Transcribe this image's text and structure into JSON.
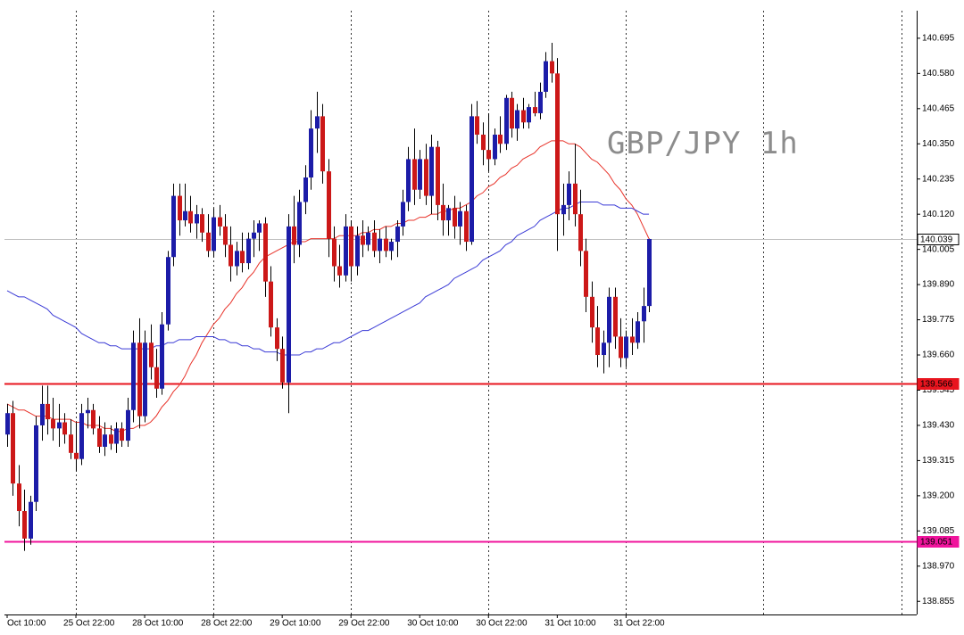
{
  "chart_data": {
    "type": "candlestick",
    "annotation": "GBP/JPY 1h",
    "categories": [
      "Oct 10:00",
      null,
      null,
      null,
      null,
      null,
      null,
      null,
      null,
      null,
      null,
      null,
      "25 Oct 22:00",
      null,
      null,
      null,
      null,
      null,
      null,
      null,
      null,
      null,
      null,
      null,
      "28 Oct 10:00",
      null,
      null,
      null,
      null,
      null,
      null,
      null,
      null,
      null,
      null,
      null,
      "28 Oct 22:00",
      null,
      null,
      null,
      null,
      null,
      null,
      null,
      null,
      null,
      null,
      null,
      "29 Oct 10:00",
      null,
      null,
      null,
      null,
      null,
      null,
      null,
      null,
      null,
      null,
      null,
      "29 Oct 22:00",
      null,
      null,
      null,
      null,
      null,
      null,
      null,
      null,
      null,
      null,
      null,
      "30 Oct 10:00",
      null,
      null,
      null,
      null,
      null,
      null,
      null,
      null,
      null,
      null,
      null,
      "30 Oct 22:00",
      null,
      null,
      null,
      null,
      null,
      null,
      null,
      null,
      null,
      null,
      null,
      "31 Oct 10:00",
      null,
      null,
      null,
      null,
      null,
      null,
      null,
      null,
      null,
      null,
      null,
      "31 Oct 22:00",
      null,
      null,
      null,
      null
    ],
    "ohlc": [
      [
        139.4,
        139.5,
        139.36,
        139.47
      ],
      [
        139.47,
        139.51,
        139.2,
        139.24
      ],
      [
        139.24,
        139.3,
        139.1,
        139.15
      ],
      [
        139.15,
        139.22,
        139.02,
        139.06
      ],
      [
        139.06,
        139.2,
        139.04,
        139.18
      ],
      [
        139.18,
        139.46,
        139.15,
        139.43
      ],
      [
        139.43,
        139.56,
        139.38,
        139.5
      ],
      [
        139.5,
        139.56,
        139.4,
        139.45
      ],
      [
        139.45,
        139.52,
        139.38,
        139.42
      ],
      [
        139.42,
        139.5,
        139.36,
        139.44
      ],
      [
        139.44,
        139.47,
        139.37,
        139.4
      ],
      [
        139.4,
        139.45,
        139.32,
        139.34
      ],
      [
        139.34,
        139.44,
        139.28,
        139.32
      ],
      [
        139.32,
        139.5,
        139.3,
        139.47
      ],
      [
        139.47,
        139.52,
        139.42,
        139.48
      ],
      [
        139.48,
        139.5,
        139.4,
        139.42
      ],
      [
        139.42,
        139.46,
        139.34,
        139.36
      ],
      [
        139.36,
        139.44,
        139.33,
        139.4
      ],
      [
        139.4,
        139.43,
        139.35,
        139.37
      ],
      [
        139.37,
        139.44,
        139.34,
        139.42
      ],
      [
        139.42,
        139.44,
        139.36,
        139.38
      ],
      [
        139.38,
        139.52,
        139.36,
        139.48
      ],
      [
        139.48,
        139.74,
        139.44,
        139.7
      ],
      [
        139.7,
        139.78,
        139.42,
        139.46
      ],
      [
        139.46,
        139.74,
        139.44,
        139.7
      ],
      [
        139.7,
        139.76,
        139.58,
        139.62
      ],
      [
        139.62,
        139.68,
        139.52,
        139.55
      ],
      [
        139.55,
        139.8,
        139.53,
        139.76
      ],
      [
        139.76,
        140.0,
        139.74,
        139.98
      ],
      [
        139.98,
        140.22,
        139.95,
        140.18
      ],
      [
        140.18,
        140.22,
        140.05,
        140.1
      ],
      [
        140.1,
        140.22,
        140.08,
        140.13
      ],
      [
        140.13,
        140.18,
        140.06,
        140.09
      ],
      [
        140.09,
        140.15,
        140.04,
        140.12
      ],
      [
        140.12,
        140.14,
        140.03,
        140.06
      ],
      [
        140.06,
        140.12,
        139.98,
        140.0
      ],
      [
        140.0,
        140.14,
        139.98,
        140.11
      ],
      [
        140.11,
        140.15,
        140.05,
        140.08
      ],
      [
        140.08,
        140.12,
        139.98,
        140.02
      ],
      [
        140.02,
        140.08,
        139.9,
        139.95
      ],
      [
        139.95,
        140.03,
        139.92,
        140.0
      ],
      [
        140.0,
        140.06,
        139.93,
        139.96
      ],
      [
        139.96,
        140.06,
        139.94,
        140.04
      ],
      [
        140.04,
        140.1,
        139.98,
        140.06
      ],
      [
        140.06,
        140.1,
        140.0,
        140.09
      ],
      [
        140.09,
        140.11,
        139.85,
        139.9
      ],
      [
        139.9,
        139.95,
        139.72,
        139.75
      ],
      [
        139.75,
        139.78,
        139.64,
        139.68
      ],
      [
        139.68,
        139.72,
        139.55,
        139.57
      ],
      [
        139.57,
        140.12,
        139.47,
        140.08
      ],
      [
        140.08,
        140.18,
        139.96,
        140.02
      ],
      [
        140.02,
        140.2,
        139.98,
        140.16
      ],
      [
        140.16,
        140.28,
        140.12,
        140.24
      ],
      [
        140.24,
        140.46,
        140.2,
        140.4
      ],
      [
        140.4,
        140.52,
        140.32,
        140.44
      ],
      [
        140.44,
        140.48,
        140.22,
        140.26
      ],
      [
        140.26,
        140.3,
        139.98,
        140.04
      ],
      [
        140.04,
        140.08,
        139.9,
        139.95
      ],
      [
        139.95,
        140.02,
        139.88,
        139.92
      ],
      [
        139.92,
        140.12,
        139.9,
        140.08
      ],
      [
        140.08,
        140.1,
        139.9,
        139.95
      ],
      [
        139.95,
        140.08,
        139.92,
        140.05
      ],
      [
        140.05,
        140.1,
        139.98,
        140.02
      ],
      [
        140.02,
        140.08,
        140.0,
        140.06
      ],
      [
        140.06,
        140.1,
        139.98,
        140.0
      ],
      [
        140.0,
        140.07,
        139.96,
        140.04
      ],
      [
        140.04,
        140.08,
        139.98,
        140.0
      ],
      [
        140.0,
        140.04,
        139.97,
        140.03
      ],
      [
        140.03,
        140.1,
        139.98,
        140.08
      ],
      [
        140.08,
        140.2,
        140.05,
        140.16
      ],
      [
        140.16,
        140.34,
        140.13,
        140.3
      ],
      [
        140.3,
        140.4,
        140.15,
        140.2
      ],
      [
        140.2,
        140.33,
        140.17,
        140.3
      ],
      [
        140.3,
        140.35,
        140.15,
        140.18
      ],
      [
        140.18,
        140.38,
        140.12,
        140.34
      ],
      [
        140.34,
        140.36,
        140.1,
        140.15
      ],
      [
        140.15,
        140.22,
        140.05,
        140.1
      ],
      [
        140.1,
        140.15,
        140.05,
        140.14
      ],
      [
        140.14,
        140.18,
        140.04,
        140.08
      ],
      [
        140.08,
        140.16,
        140.02,
        140.13
      ],
      [
        140.13,
        140.15,
        140.0,
        140.03
      ],
      [
        140.03,
        140.48,
        140.02,
        140.44
      ],
      [
        140.44,
        140.49,
        140.35,
        140.38
      ],
      [
        140.38,
        140.42,
        140.28,
        140.33
      ],
      [
        140.33,
        140.45,
        140.26,
        140.3
      ],
      [
        140.3,
        140.4,
        140.28,
        140.38
      ],
      [
        140.38,
        140.44,
        140.32,
        140.35
      ],
      [
        140.35,
        140.51,
        140.33,
        140.5
      ],
      [
        140.5,
        140.52,
        140.37,
        140.4
      ],
      [
        140.4,
        140.48,
        140.36,
        140.46
      ],
      [
        140.46,
        140.5,
        140.4,
        140.42
      ],
      [
        140.42,
        140.48,
        140.4,
        140.47
      ],
      [
        140.47,
        140.52,
        140.44,
        140.45
      ],
      [
        140.45,
        140.55,
        140.43,
        140.52
      ],
      [
        140.52,
        140.65,
        140.5,
        140.62
      ],
      [
        140.62,
        140.68,
        140.55,
        140.58
      ],
      [
        140.58,
        140.63,
        140.0,
        140.12
      ],
      [
        140.12,
        140.22,
        140.05,
        140.15
      ],
      [
        140.15,
        140.26,
        140.1,
        140.22
      ],
      [
        140.22,
        140.35,
        140.08,
        140.12
      ],
      [
        140.12,
        140.2,
        139.95,
        140.0
      ],
      [
        140.0,
        140.04,
        139.8,
        139.85
      ],
      [
        139.85,
        139.9,
        139.7,
        139.75
      ],
      [
        139.75,
        139.82,
        139.62,
        139.66
      ],
      [
        139.66,
        139.74,
        139.6,
        139.7
      ],
      [
        139.7,
        139.88,
        139.62,
        139.85
      ],
      [
        139.85,
        139.88,
        139.68,
        139.72
      ],
      [
        139.72,
        139.78,
        139.62,
        139.65
      ],
      [
        139.65,
        139.74,
        139.62,
        139.72
      ],
      [
        139.72,
        139.78,
        139.66,
        139.7
      ],
      [
        139.7,
        139.8,
        139.68,
        139.77
      ],
      [
        139.77,
        139.88,
        139.7,
        139.82
      ],
      [
        139.82,
        140.04,
        139.8,
        140.039
      ]
    ],
    "bull_color": "#1c1ca8",
    "bear_color": "#cc1818",
    "wick_color": "#000000",
    "series": [
      {
        "color": "#e8332a",
        "values": [
          139.5,
          139.49,
          139.48,
          139.48,
          139.47,
          139.46,
          139.46,
          139.46,
          139.45,
          139.45,
          139.45,
          139.45,
          139.44,
          139.44,
          139.43,
          139.43,
          139.43,
          139.42,
          139.42,
          139.41,
          139.41,
          139.42,
          139.42,
          139.43,
          139.43,
          139.44,
          139.46,
          139.49,
          139.51,
          139.54,
          139.56,
          139.59,
          139.63,
          139.66,
          139.7,
          139.73,
          139.76,
          139.78,
          139.81,
          139.83,
          139.86,
          139.88,
          139.91,
          139.93,
          139.96,
          139.98,
          139.99,
          140.0,
          140.01,
          140.02,
          140.03,
          140.03,
          140.03,
          140.04,
          140.04,
          140.04,
          140.04,
          140.04,
          140.05,
          140.05,
          140.05,
          140.05,
          140.06,
          140.06,
          140.07,
          140.07,
          140.08,
          140.08,
          140.09,
          140.09,
          140.1,
          140.1,
          140.11,
          140.11,
          140.12,
          140.12,
          140.13,
          140.13,
          140.14,
          140.14,
          140.15,
          140.16,
          140.18,
          140.19,
          140.21,
          140.22,
          140.24,
          140.25,
          140.27,
          140.28,
          140.3,
          140.31,
          140.32,
          140.34,
          140.35,
          140.36,
          140.36,
          140.36,
          140.35,
          140.35,
          140.34,
          140.32,
          140.3,
          140.29,
          140.27,
          140.25,
          140.22,
          140.2,
          140.17,
          140.15,
          140.12,
          140.08,
          140.04
        ]
      },
      {
        "color": "#3b3bd6",
        "values": [
          139.87,
          139.86,
          139.85,
          139.85,
          139.84,
          139.83,
          139.82,
          139.81,
          139.79,
          139.78,
          139.77,
          139.76,
          139.75,
          139.73,
          139.72,
          139.71,
          139.7,
          139.7,
          139.69,
          139.69,
          139.68,
          139.68,
          139.68,
          139.68,
          139.68,
          139.68,
          139.69,
          139.69,
          139.7,
          139.7,
          139.71,
          139.71,
          139.71,
          139.72,
          139.72,
          139.72,
          139.72,
          139.71,
          139.71,
          139.7,
          139.7,
          139.69,
          139.69,
          139.68,
          139.68,
          139.67,
          139.67,
          139.67,
          139.66,
          139.66,
          139.66,
          139.66,
          139.67,
          139.67,
          139.68,
          139.68,
          139.69,
          139.7,
          139.7,
          139.71,
          139.72,
          139.73,
          139.74,
          139.74,
          139.75,
          139.76,
          139.77,
          139.78,
          139.79,
          139.8,
          139.81,
          139.82,
          139.83,
          139.85,
          139.86,
          139.87,
          139.88,
          139.89,
          139.91,
          139.92,
          139.93,
          139.94,
          139.95,
          139.97,
          139.98,
          139.99,
          140.0,
          140.02,
          140.03,
          140.05,
          140.06,
          140.07,
          140.08,
          140.1,
          140.11,
          140.12,
          140.13,
          140.14,
          140.14,
          140.15,
          140.16,
          140.16,
          140.16,
          140.16,
          140.15,
          140.15,
          140.15,
          140.14,
          140.14,
          140.14,
          140.13,
          140.12,
          140.12
        ]
      }
    ],
    "price_lines": [
      {
        "value": 140.039,
        "color": "#c0c0c0",
        "label_color": "#000000",
        "label_fill": "#ffffff"
      },
      {
        "value": 139.566,
        "color": "#e8141e",
        "label_color": "#ffffff",
        "label_fill": "#e8141e"
      },
      {
        "value": 139.051,
        "color": "#f0149c",
        "label_color": "#ffffff",
        "label_fill": "#f0149c"
      }
    ],
    "ylim": [
      138.812,
      140.785
    ],
    "yticks": [
      140.695,
      {
        "value": 140.58,
        "label": "140.580"
      },
      140.465,
      {
        "value": 140.35,
        "label": "140.350"
      },
      140.235,
      {
        "value": 140.12,
        "label": "140.120"
      },
      140.005,
      {
        "value": 139.89,
        "label": "139.890"
      },
      139.775,
      {
        "value": 139.66,
        "label": "139.660"
      },
      139.545,
      {
        "value": 139.43,
        "label": "139.430"
      },
      139.315,
      {
        "value": 139.2,
        "label": "139.200"
      },
      139.085,
      {
        "value": 138.97,
        "label": "138.970"
      },
      138.855
    ],
    "grid": true
  }
}
